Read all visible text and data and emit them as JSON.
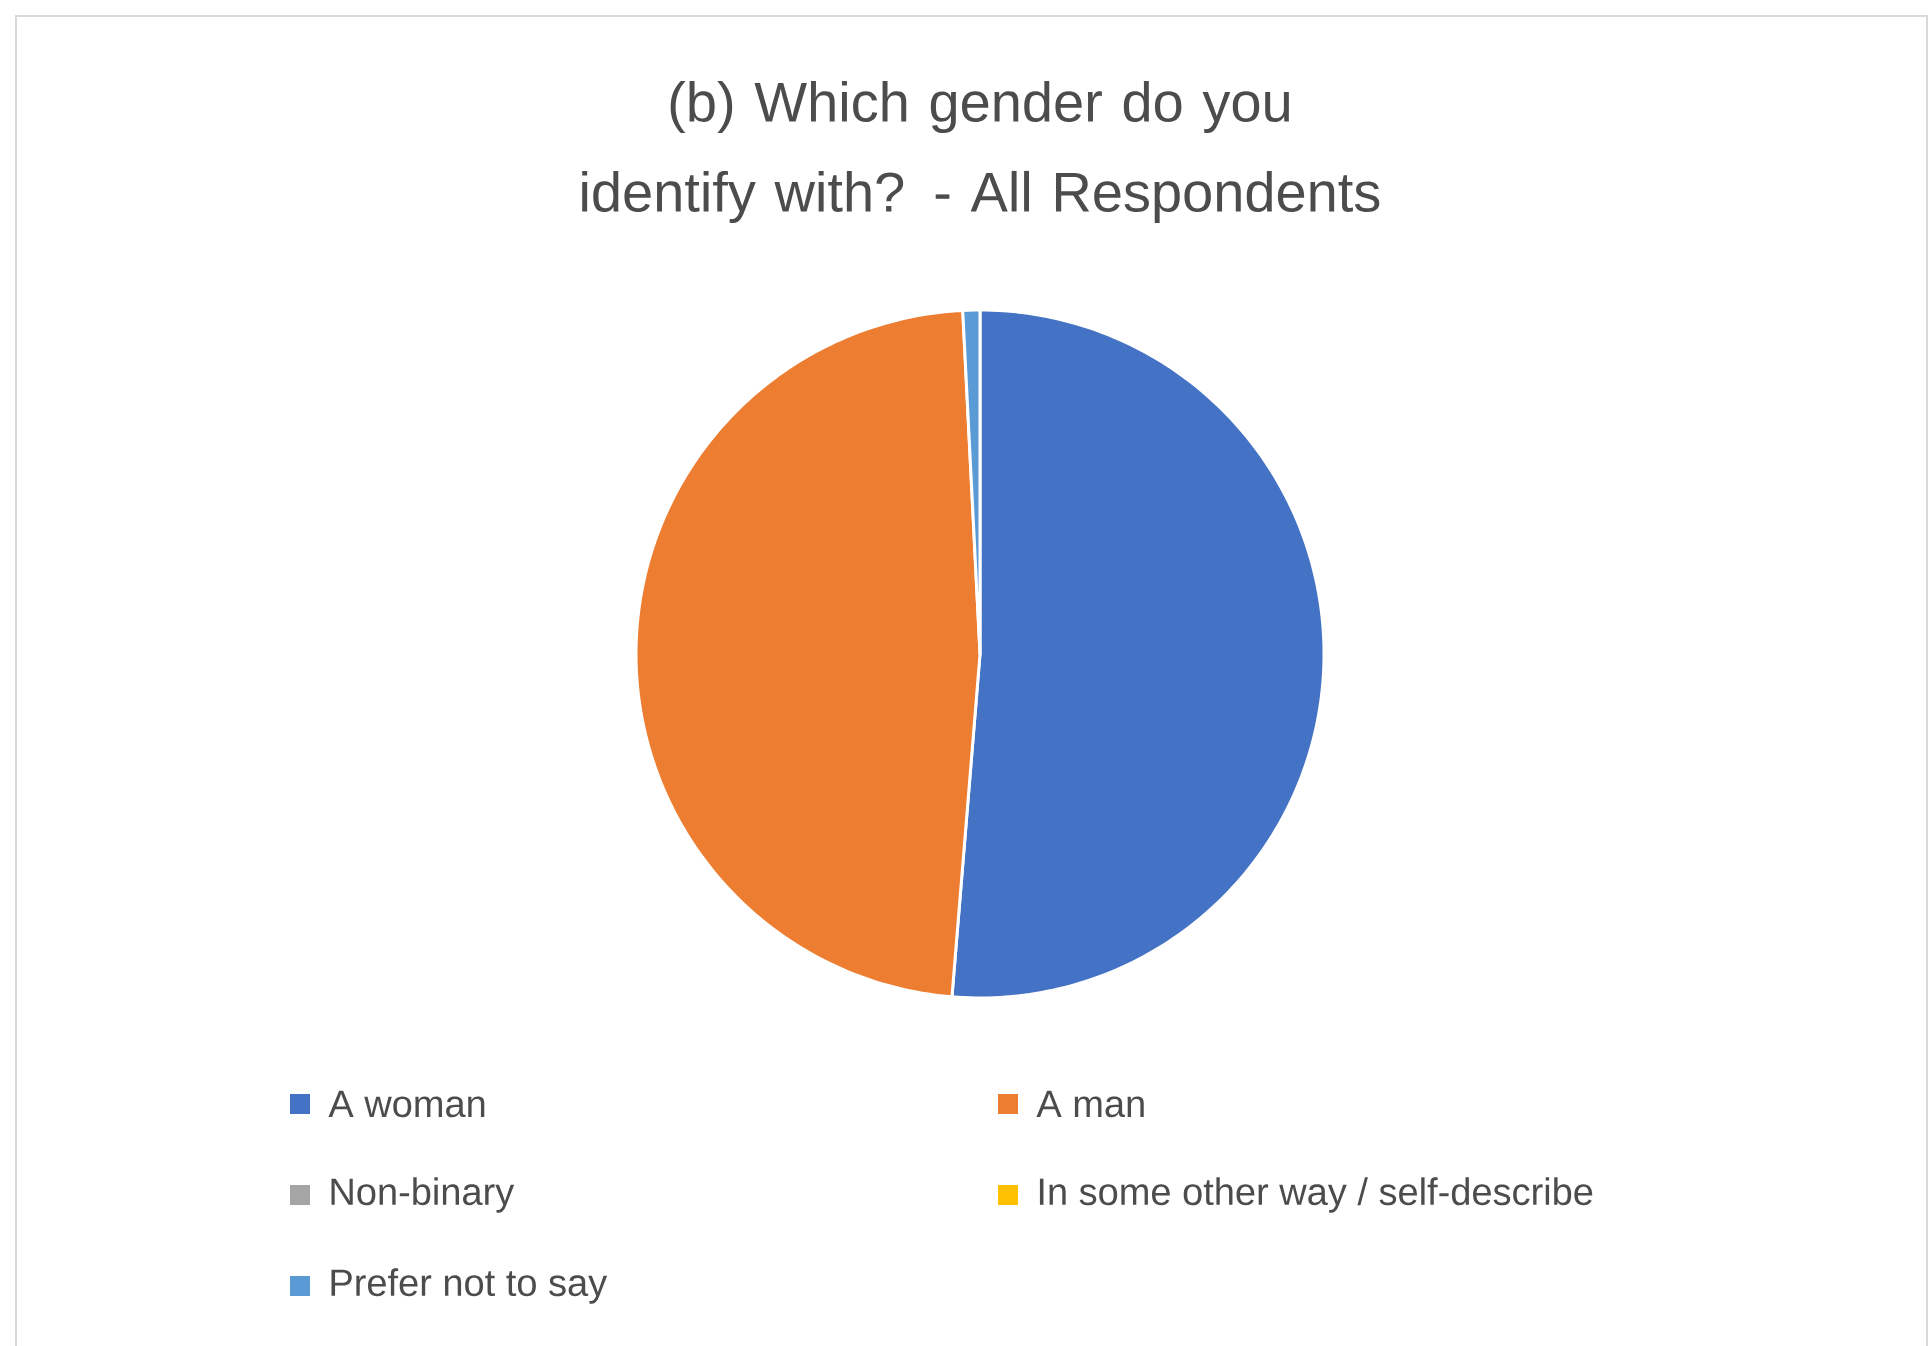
{
  "chart_data": {
    "type": "pie",
    "title": "(b) Which gender do you identify with? - All Respondents",
    "categories": [
      "A woman",
      "A man",
      "Non-binary",
      "In some other way / self-describe",
      "Prefer not to say"
    ],
    "values": [
      51.3,
      47.9,
      null,
      0,
      0.8
    ],
    "colors": [
      "#4472c4",
      "#ed7d31",
      "#a5a5a5",
      "#ffc000",
      "#5b9bd5"
    ],
    "legend": "bottom"
  }
}
